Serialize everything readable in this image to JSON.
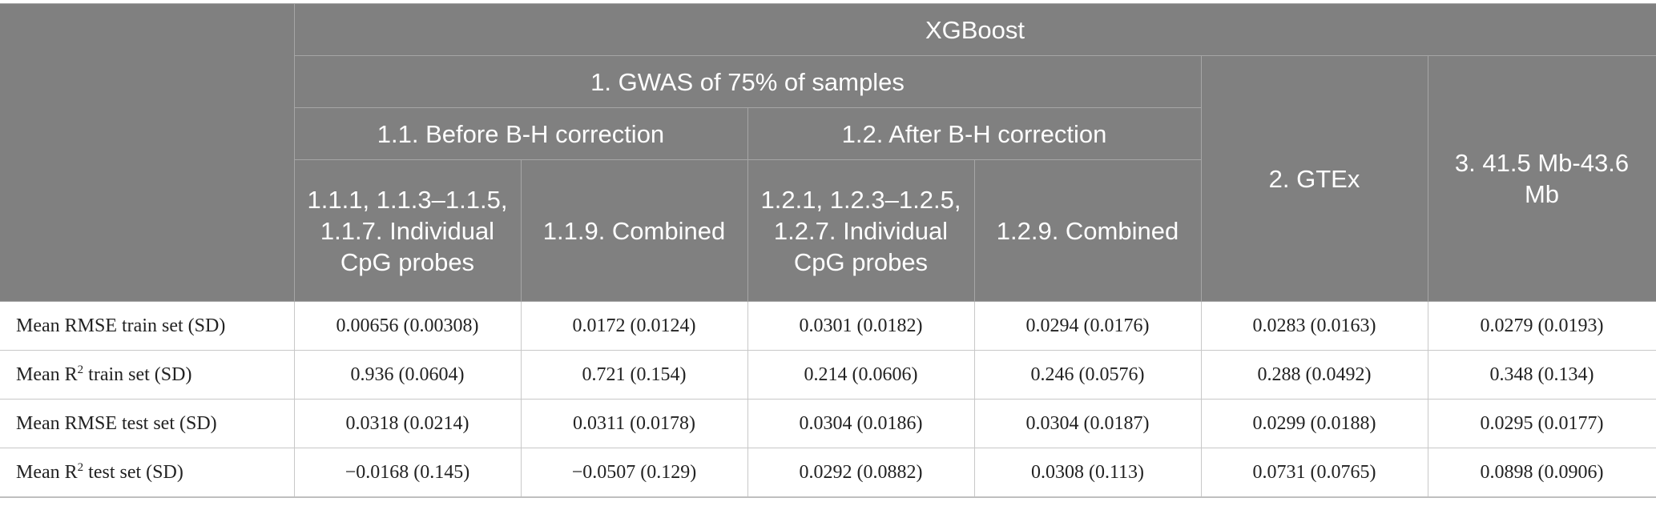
{
  "header": {
    "model": "XGBoost",
    "gwas": "1. GWAS of 75% of samples",
    "before": "1.1. Before B-H correction",
    "after": "1.2. After B-H correction",
    "gtex": "2. GTEx",
    "region": "3. 41.5 Mb-43.6 Mb",
    "sub": [
      "1.1.1, 1.1.3–1.1.5, 1.1.7. Individual CpG probes",
      "1.1.9. Combined",
      "1.2.1, 1.2.3–1.2.5, 1.2.7. Individual CpG probes",
      "1.2.9. Combined"
    ]
  },
  "rows": [
    {
      "pre": "Mean RMSE train set (SD)",
      "sup": "",
      "post": "",
      "values": [
        "0.00656 (0.00308)",
        "0.0172 (0.0124)",
        "0.0301 (0.0182)",
        "0.0294 (0.0176)",
        "0.0283 (0.0163)",
        "0.0279 (0.0193)"
      ]
    },
    {
      "pre": "Mean R",
      "sup": "2",
      "post": " train set (SD)",
      "values": [
        "0.936 (0.0604)",
        "0.721 (0.154)",
        "0.214 (0.0606)",
        "0.246 (0.0576)",
        "0.288 (0.0492)",
        "0.348 (0.134)"
      ]
    },
    {
      "pre": "Mean RMSE test set (SD)",
      "sup": "",
      "post": "",
      "values": [
        "0.0318 (0.0214)",
        "0.0311 (0.0178)",
        "0.0304 (0.0186)",
        "0.0304 (0.0187)",
        "0.0299 (0.0188)",
        "0.0295 (0.0177)"
      ]
    },
    {
      "pre": "Mean R",
      "sup": "2",
      "post": " test set (SD)",
      "values": [
        "−0.0168 (0.145)",
        "−0.0507 (0.129)",
        "0.0292 (0.0882)",
        "0.0308 (0.113)",
        "0.0731 (0.0765)",
        "0.0898 (0.0906)"
      ]
    }
  ]
}
